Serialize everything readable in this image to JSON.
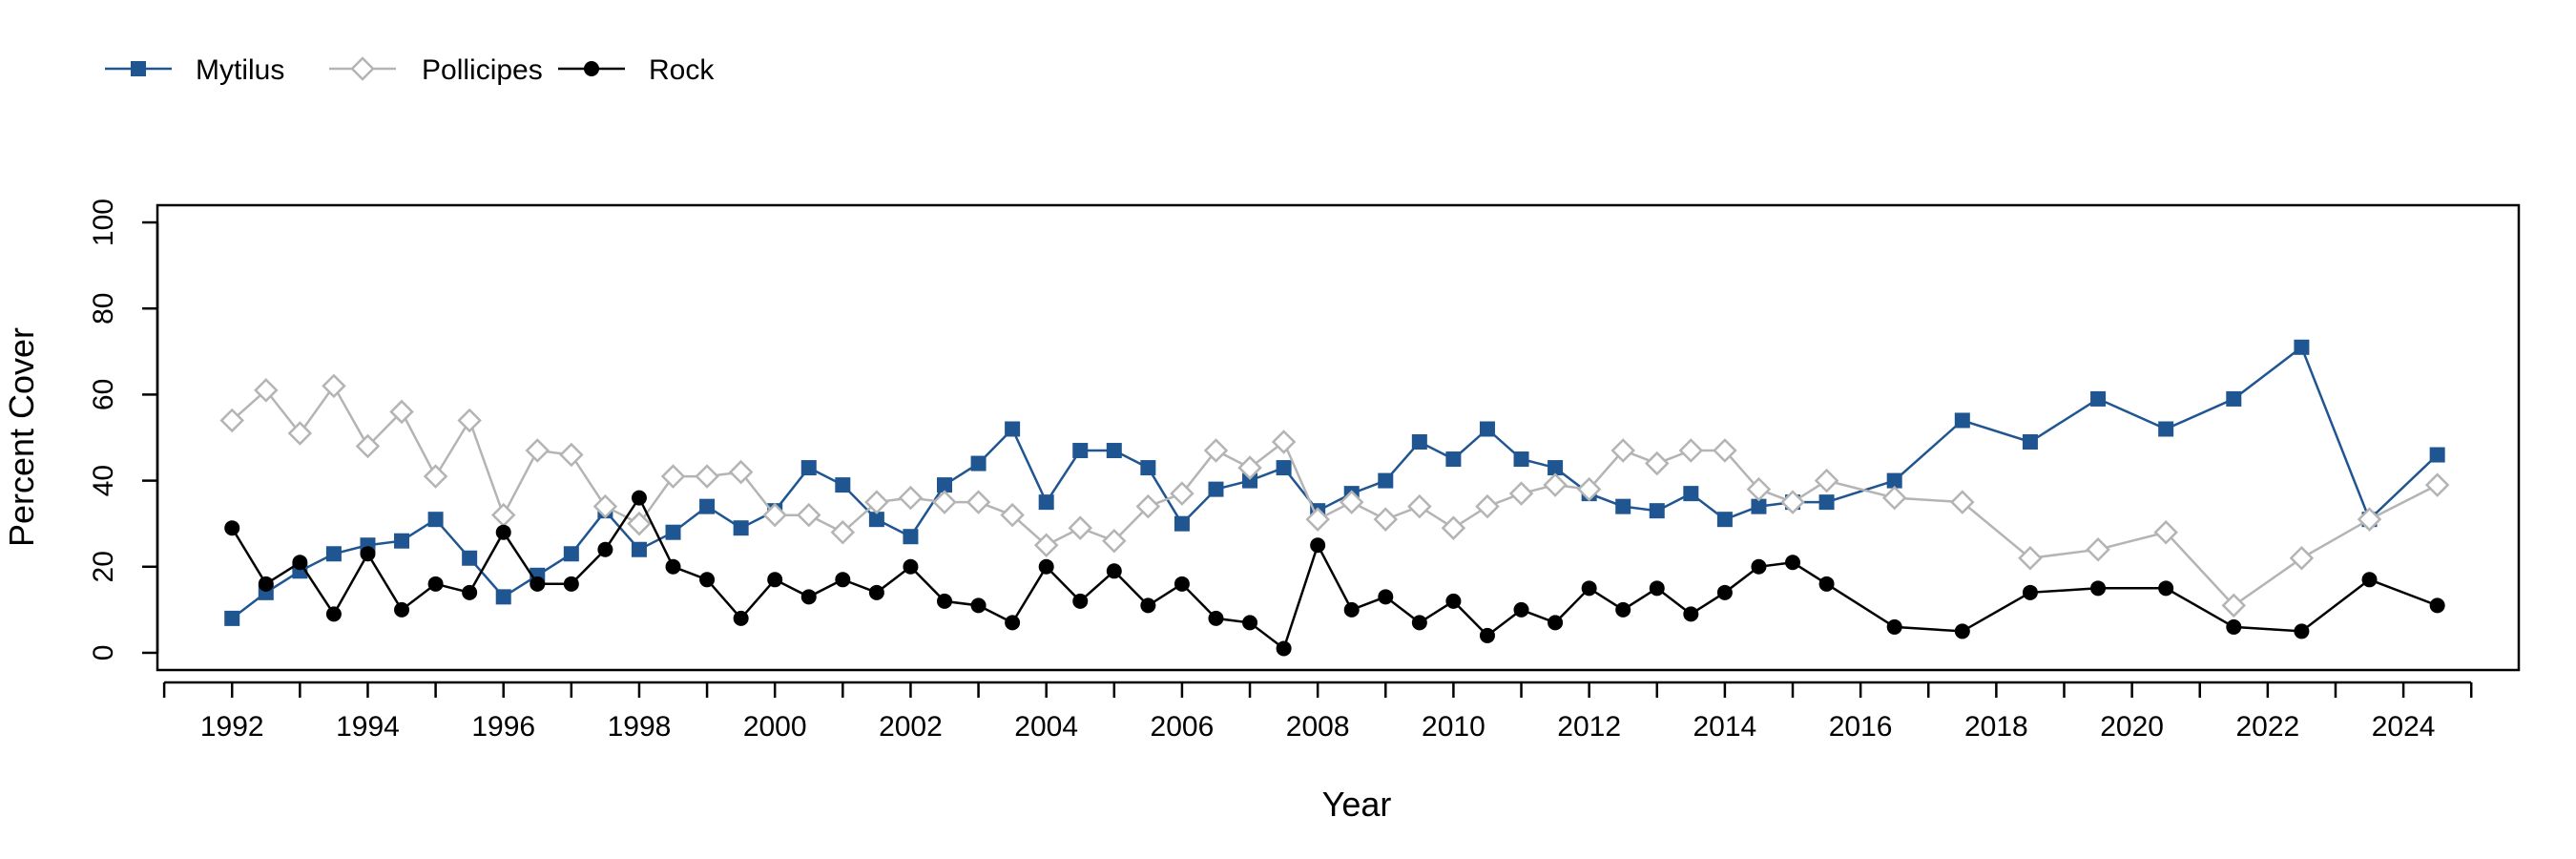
{
  "chart_data": {
    "type": "line",
    "xlabel": "Year",
    "ylabel": "Percent Cover",
    "xlim": [
      1990.9,
      2025.7
    ],
    "ylim": [
      -4,
      104
    ],
    "x_ticks": [
      1992,
      1994,
      1996,
      1998,
      2000,
      2002,
      2004,
      2006,
      2008,
      2010,
      2012,
      2014,
      2016,
      2018,
      2020,
      2022,
      2024
    ],
    "x_minor_step": 1,
    "y_ticks": [
      0,
      20,
      40,
      60,
      80,
      100
    ],
    "legend_position": "top-left",
    "grid": false,
    "series": [
      {
        "name": "Mytilus",
        "color": "#1f5591",
        "marker": "square",
        "x": [
          1992.0,
          1992.5,
          1993.0,
          1993.5,
          1994.0,
          1994.5,
          1995.0,
          1995.5,
          1996.0,
          1996.5,
          1997.0,
          1997.5,
          1998.0,
          1998.5,
          1999.0,
          1999.5,
          2000.0,
          2000.5,
          2001.0,
          2001.5,
          2002.0,
          2002.5,
          2003.0,
          2003.5,
          2004.0,
          2004.5,
          2005.0,
          2005.5,
          2006.0,
          2006.5,
          2007.0,
          2007.5,
          2008.0,
          2008.5,
          2009.0,
          2009.5,
          2010.0,
          2010.5,
          2011.0,
          2011.5,
          2012.0,
          2012.5,
          2013.0,
          2013.5,
          2014.0,
          2014.5,
          2015.0,
          2015.5,
          2016.5,
          2017.5,
          2018.5,
          2019.5,
          2020.5,
          2021.5,
          2022.5,
          2023.5,
          2024.5
        ],
        "values": [
          8,
          14,
          19,
          23,
          25,
          26,
          31,
          22,
          13,
          18,
          23,
          33,
          24,
          28,
          34,
          29,
          33,
          43,
          39,
          31,
          27,
          39,
          44,
          52,
          35,
          47,
          47,
          43,
          30,
          38,
          40,
          43,
          33,
          37,
          40,
          49,
          45,
          52,
          45,
          43,
          37,
          34,
          33,
          37,
          31,
          34,
          35,
          35,
          40,
          54,
          49,
          59,
          52,
          59,
          71,
          31,
          46
        ]
      },
      {
        "name": "Pollicipes",
        "color": "#b4b4b4",
        "marker": "diamond-open",
        "x": [
          1992.0,
          1992.5,
          1993.0,
          1993.5,
          1994.0,
          1994.5,
          1995.0,
          1995.5,
          1996.0,
          1996.5,
          1997.0,
          1997.5,
          1998.0,
          1998.5,
          1999.0,
          1999.5,
          2000.0,
          2000.5,
          2001.0,
          2001.5,
          2002.0,
          2002.5,
          2003.0,
          2003.5,
          2004.0,
          2004.5,
          2005.0,
          2005.5,
          2006.0,
          2006.5,
          2007.0,
          2007.5,
          2008.0,
          2008.5,
          2009.0,
          2009.5,
          2010.0,
          2010.5,
          2011.0,
          2011.5,
          2012.0,
          2012.5,
          2013.0,
          2013.5,
          2014.0,
          2014.5,
          2015.0,
          2015.5,
          2016.5,
          2017.5,
          2018.5,
          2019.5,
          2020.5,
          2021.5,
          2022.5,
          2023.5,
          2024.5
        ],
        "values": [
          54,
          61,
          51,
          62,
          48,
          56,
          41,
          54,
          32,
          47,
          46,
          34,
          30,
          41,
          41,
          42,
          32,
          32,
          28,
          35,
          36,
          35,
          35,
          32,
          25,
          29,
          26,
          34,
          37,
          47,
          43,
          49,
          31,
          35,
          31,
          34,
          29,
          34,
          37,
          39,
          38,
          47,
          44,
          47,
          47,
          38,
          35,
          40,
          36,
          35,
          22,
          24,
          28,
          11,
          22,
          31,
          39
        ]
      },
      {
        "name": "Rock",
        "color": "#000000",
        "marker": "circle",
        "x": [
          1992.0,
          1992.5,
          1993.0,
          1993.5,
          1994.0,
          1994.5,
          1995.0,
          1995.5,
          1996.0,
          1996.5,
          1997.0,
          1997.5,
          1998.0,
          1998.5,
          1999.0,
          1999.5,
          2000.0,
          2000.5,
          2001.0,
          2001.5,
          2002.0,
          2002.5,
          2003.0,
          2003.5,
          2004.0,
          2004.5,
          2005.0,
          2005.5,
          2006.0,
          2006.5,
          2007.0,
          2007.5,
          2008.0,
          2008.5,
          2009.0,
          2009.5,
          2010.0,
          2010.5,
          2011.0,
          2011.5,
          2012.0,
          2012.5,
          2013.0,
          2013.5,
          2014.0,
          2014.5,
          2015.0,
          2015.5,
          2016.5,
          2017.5,
          2018.5,
          2019.5,
          2020.5,
          2021.5,
          2022.5,
          2023.5,
          2024.5
        ],
        "values": [
          29,
          16,
          21,
          9,
          23,
          10,
          16,
          14,
          28,
          16,
          16,
          24,
          36,
          20,
          17,
          8,
          17,
          13,
          17,
          14,
          20,
          12,
          11,
          7,
          20,
          12,
          19,
          11,
          16,
          8,
          7,
          1,
          25,
          10,
          13,
          7,
          12,
          4,
          10,
          7,
          15,
          10,
          15,
          9,
          14,
          20,
          21,
          16,
          6,
          5,
          14,
          15,
          15,
          6,
          5,
          17,
          11
        ]
      }
    ]
  }
}
